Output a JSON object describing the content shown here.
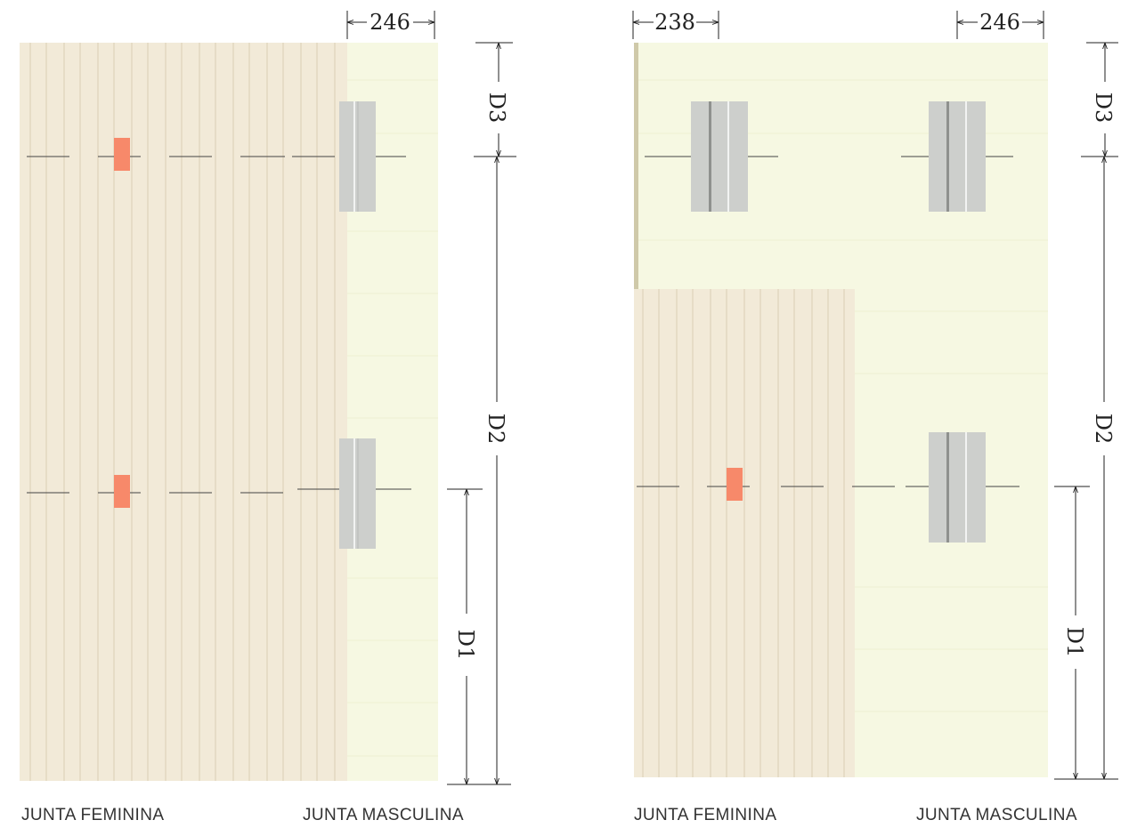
{
  "diagrams": [
    {
      "top_dimension_left": "",
      "top_dimension_right": "246",
      "dimension_labels": [
        "D3",
        "D2",
        "D1"
      ],
      "caption_left": "JUNTA FEMININA",
      "caption_right": "JUNTA MASCULINA"
    },
    {
      "top_dimension_left": "238",
      "top_dimension_right": "246",
      "dimension_labels": [
        "D3",
        "D2",
        "D1"
      ],
      "caption_left": "JUNTA FEMININA",
      "caption_right": "JUNTA MASCULINA"
    }
  ],
  "colors": {
    "beige_panel": "#f2ead8",
    "green_panel": "#f6f8e2",
    "grey_joint": "#cdcfcc",
    "orange_marker": "#f7896a",
    "line": "#333333"
  }
}
